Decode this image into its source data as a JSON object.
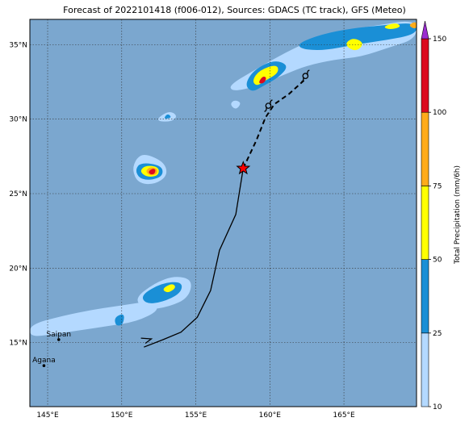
{
  "title": "Forecast of 2022101418 (f006-012), Sources: GDACS (TC track), GFS (Meteo)",
  "map": {
    "lat_range": [
      10.7,
      36.7
    ],
    "lon_range": [
      143.8,
      169.9
    ],
    "lat_ticks": [
      {
        "value": 15,
        "label": "15°N"
      },
      {
        "value": 20,
        "label": "20°N"
      },
      {
        "value": 25,
        "label": "25°N"
      },
      {
        "value": 30,
        "label": "30°N"
      },
      {
        "value": 35,
        "label": "35°N"
      }
    ],
    "lon_ticks": [
      {
        "value": 145,
        "label": "145°E"
      },
      {
        "value": 150,
        "label": "150°E"
      },
      {
        "value": 155,
        "label": "155°E"
      },
      {
        "value": 160,
        "label": "160°E"
      },
      {
        "value": 165,
        "label": "165°E"
      }
    ],
    "ocean_color": "#7ba7cf",
    "grid": true
  },
  "cities": [
    {
      "name": "Saipan",
      "lon": 145.75,
      "lat": 15.2
    },
    {
      "name": "Agana",
      "lon": 144.75,
      "lat": 13.45
    }
  ],
  "track": {
    "past": [
      [
        151.5,
        14.7
      ],
      [
        152.8,
        15.2
      ],
      [
        154.0,
        15.7
      ],
      [
        155.1,
        16.7
      ],
      [
        156.0,
        18.5
      ],
      [
        156.6,
        21.2
      ],
      [
        157.7,
        23.6
      ],
      [
        158.2,
        26.7
      ]
    ],
    "past_start_marker": [
      151.3,
      15.3
    ],
    "current_position": [
      158.2,
      26.7
    ],
    "forecast": [
      [
        158.2,
        26.7
      ],
      [
        159.1,
        28.6
      ],
      [
        159.7,
        30.1
      ],
      [
        160.3,
        31.0
      ],
      [
        161.3,
        31.7
      ],
      [
        162.3,
        32.6
      ]
    ],
    "storm_symbols": [
      [
        159.9,
        30.9
      ],
      [
        162.4,
        32.9
      ]
    ]
  },
  "colorbar": {
    "label": "Total Precipitation (mm/6h)",
    "ticks": [
      "10",
      "25",
      "50",
      "75",
      "100",
      "150"
    ],
    "colors": [
      "#b4d9ff",
      "#1a8fd6",
      "#ffff00",
      "#ffab1a",
      "#dc0a1e",
      "#9b2dd0"
    ]
  },
  "precip_blobs": [
    {
      "level": 1,
      "pts": [
        [
          143.8,
          16.2
        ],
        [
          146,
          16.8
        ],
        [
          148,
          17.2
        ],
        [
          150,
          17.5
        ],
        [
          152,
          17.8
        ],
        [
          152.6,
          17.2
        ],
        [
          151,
          16.4
        ],
        [
          149,
          16.1
        ],
        [
          147,
          15.8
        ],
        [
          145,
          15.5
        ],
        [
          143.8,
          15.4
        ]
      ]
    },
    {
      "level": 1,
      "pts": [
        [
          150.8,
          17.9
        ],
        [
          152.2,
          19.0
        ],
        [
          153.6,
          19.5
        ],
        [
          154.8,
          19.2
        ],
        [
          154.5,
          18.0
        ],
        [
          153.2,
          17.4
        ],
        [
          151.7,
          17.2
        ]
      ]
    },
    {
      "level": 2,
      "pts": [
        [
          151.3,
          18.2
        ],
        [
          152.7,
          19.0
        ],
        [
          154.1,
          19.1
        ],
        [
          154.0,
          18.3
        ],
        [
          152.7,
          17.7
        ],
        [
          151.6,
          17.6
        ]
      ]
    },
    {
      "level": 3,
      "pts": [
        [
          152.7,
          18.6
        ],
        [
          153.4,
          19.0
        ],
        [
          153.7,
          18.7
        ],
        [
          153.1,
          18.3
        ]
      ]
    },
    {
      "level": 2,
      "pts": [
        [
          149.5,
          16.7
        ],
        [
          150.2,
          17.0
        ],
        [
          150.1,
          16.2
        ],
        [
          149.6,
          16.1
        ]
      ]
    },
    {
      "level": 1,
      "pts": [
        [
          150.7,
          26.6
        ],
        [
          151.0,
          27.4
        ],
        [
          151.6,
          27.7
        ],
        [
          152.9,
          27.1
        ],
        [
          153.1,
          26.2
        ],
        [
          152.2,
          25.6
        ],
        [
          151.1,
          25.7
        ]
      ]
    },
    {
      "level": 2,
      "pts": [
        [
          150.9,
          26.6
        ],
        [
          151.3,
          27.1
        ],
        [
          152.7,
          26.9
        ],
        [
          152.8,
          26.2
        ],
        [
          152.0,
          25.9
        ],
        [
          151.2,
          26.0
        ]
      ]
    },
    {
      "level": 3,
      "pts": [
        [
          151.2,
          26.5
        ],
        [
          151.6,
          26.9
        ],
        [
          152.5,
          26.8
        ],
        [
          152.5,
          26.2
        ],
        [
          151.7,
          26.1
        ]
      ]
    },
    {
      "level": 4,
      "pts": [
        [
          151.6,
          26.5
        ],
        [
          151.9,
          26.8
        ],
        [
          152.4,
          26.7
        ],
        [
          152.4,
          26.3
        ],
        [
          151.9,
          26.2
        ]
      ]
    },
    {
      "level": 5,
      "pts": [
        [
          151.8,
          26.5
        ],
        [
          152.1,
          26.7
        ],
        [
          152.3,
          26.6
        ],
        [
          152.2,
          26.3
        ],
        [
          151.9,
          26.3
        ]
      ]
    },
    {
      "level": 1,
      "pts": [
        [
          152.2,
          29.9
        ],
        [
          153.2,
          30.6
        ],
        [
          153.8,
          30.2
        ],
        [
          153.3,
          29.8
        ]
      ]
    },
    {
      "level": 2,
      "pts": [
        [
          152.8,
          30.0
        ],
        [
          153.1,
          30.4
        ],
        [
          153.4,
          30.1
        ]
      ]
    },
    {
      "level": 1,
      "pts": [
        [
          157.3,
          32.3
        ],
        [
          158.8,
          33.2
        ],
        [
          160.2,
          34.0
        ],
        [
          161.9,
          34.9
        ],
        [
          163.4,
          35.5
        ],
        [
          165.2,
          36.0
        ],
        [
          167.2,
          36.3
        ],
        [
          169.9,
          36.7
        ],
        [
          169.9,
          35.4
        ],
        [
          168.0,
          34.8
        ],
        [
          166.2,
          34.2
        ],
        [
          164.4,
          34.0
        ],
        [
          162.5,
          33.6
        ],
        [
          161.0,
          33.0
        ],
        [
          159.6,
          32.4
        ],
        [
          158.3,
          32.0
        ],
        [
          157.4,
          31.9
        ]
      ]
    },
    {
      "level": 1,
      "pts": [
        [
          157.3,
          31.0
        ],
        [
          157.6,
          31.3
        ],
        [
          158.1,
          31.1
        ],
        [
          157.7,
          30.6
        ]
      ]
    },
    {
      "level": 2,
      "pts": [
        [
          158.3,
          32.3
        ],
        [
          158.9,
          33.3
        ],
        [
          160.3,
          34.0
        ],
        [
          161.3,
          33.6
        ],
        [
          160.6,
          32.8
        ],
        [
          159.5,
          32.2
        ],
        [
          158.8,
          31.8
        ]
      ]
    },
    {
      "level": 3,
      "pts": [
        [
          158.8,
          32.6
        ],
        [
          159.3,
          33.3
        ],
        [
          160.5,
          33.7
        ],
        [
          160.6,
          33.1
        ],
        [
          159.7,
          32.6
        ],
        [
          159.1,
          32.2
        ]
      ]
    },
    {
      "level": 5,
      "pts": [
        [
          159.2,
          32.4
        ],
        [
          159.5,
          32.9
        ],
        [
          159.8,
          32.8
        ],
        [
          159.6,
          32.4
        ]
      ]
    },
    {
      "level": 2,
      "pts": [
        [
          161.9,
          35.1
        ],
        [
          163.5,
          35.7
        ],
        [
          165.5,
          36.1
        ],
        [
          167.6,
          36.3
        ],
        [
          169.9,
          36.5
        ],
        [
          169.9,
          35.7
        ],
        [
          167.8,
          35.3
        ],
        [
          165.7,
          35.0
        ],
        [
          163.6,
          34.6
        ],
        [
          162.1,
          34.7
        ]
      ]
    },
    {
      "level": 3,
      "pts": [
        [
          165.0,
          35.0
        ],
        [
          165.6,
          35.5
        ],
        [
          166.4,
          35.1
        ],
        [
          165.8,
          34.5
        ]
      ]
    },
    {
      "level": 3,
      "pts": [
        [
          167.6,
          36.2
        ],
        [
          168.5,
          36.5
        ],
        [
          168.9,
          36.2
        ],
        [
          168.1,
          36.0
        ]
      ]
    },
    {
      "level": 4,
      "pts": [
        [
          169.3,
          36.3
        ],
        [
          169.9,
          36.6
        ],
        [
          169.9,
          36.0
        ]
      ]
    }
  ]
}
